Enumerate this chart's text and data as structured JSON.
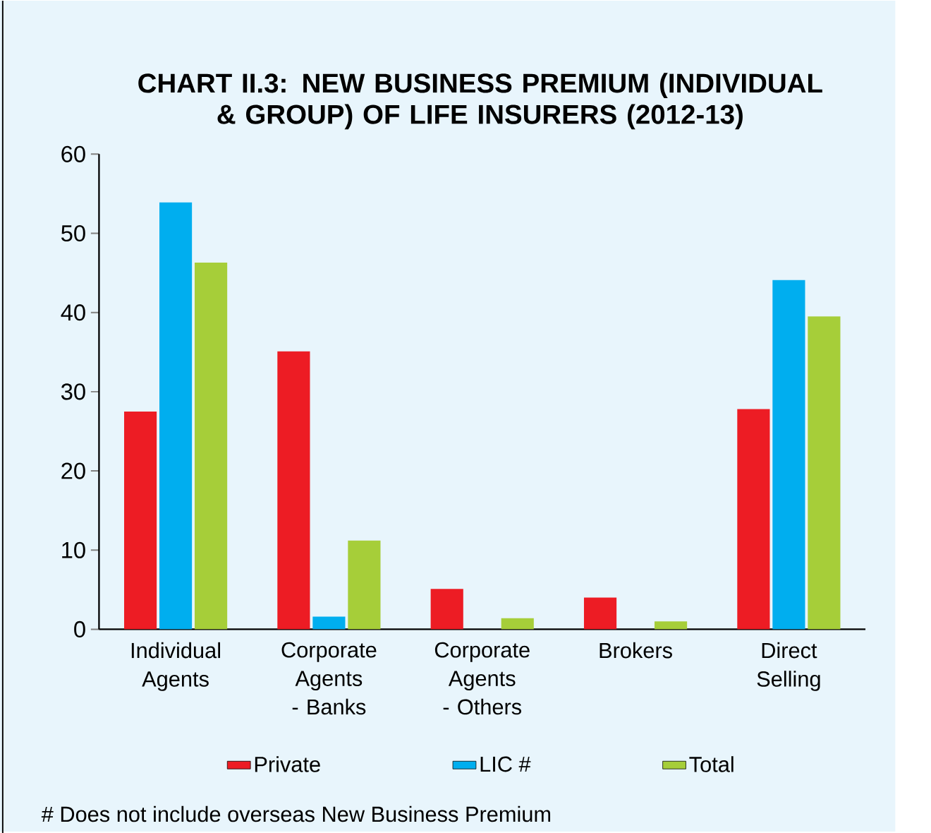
{
  "chart_data": {
    "type": "bar",
    "title": "CHART II.3: NEW BUSINESS PREMIUM (INDIVIDUAL & GROUP) OF LIFE INSURERS (2012-13)",
    "categories": [
      "Individual Agents",
      "Corporate Agents - Banks",
      "Corporate Agents - Others",
      "Brokers",
      "Direct Selling"
    ],
    "series": [
      {
        "name": "Private",
        "color": "#ed1c24",
        "values": [
          27.5,
          35.1,
          5.1,
          4.0,
          27.8
        ]
      },
      {
        "name": "LIC #",
        "color": "#00aeef",
        "values": [
          53.9,
          1.6,
          0,
          0,
          44.1
        ]
      },
      {
        "name": "Total",
        "color": "#a6ce39",
        "values": [
          46.3,
          11.2,
          1.4,
          1.0,
          39.5
        ]
      }
    ],
    "ylim": [
      0,
      60
    ],
    "yticks": [
      0,
      10,
      20,
      30,
      40,
      50,
      60
    ],
    "grid": false,
    "legend": "bottom",
    "annotations": [
      "# Does not include overseas New Business Premium"
    ]
  }
}
